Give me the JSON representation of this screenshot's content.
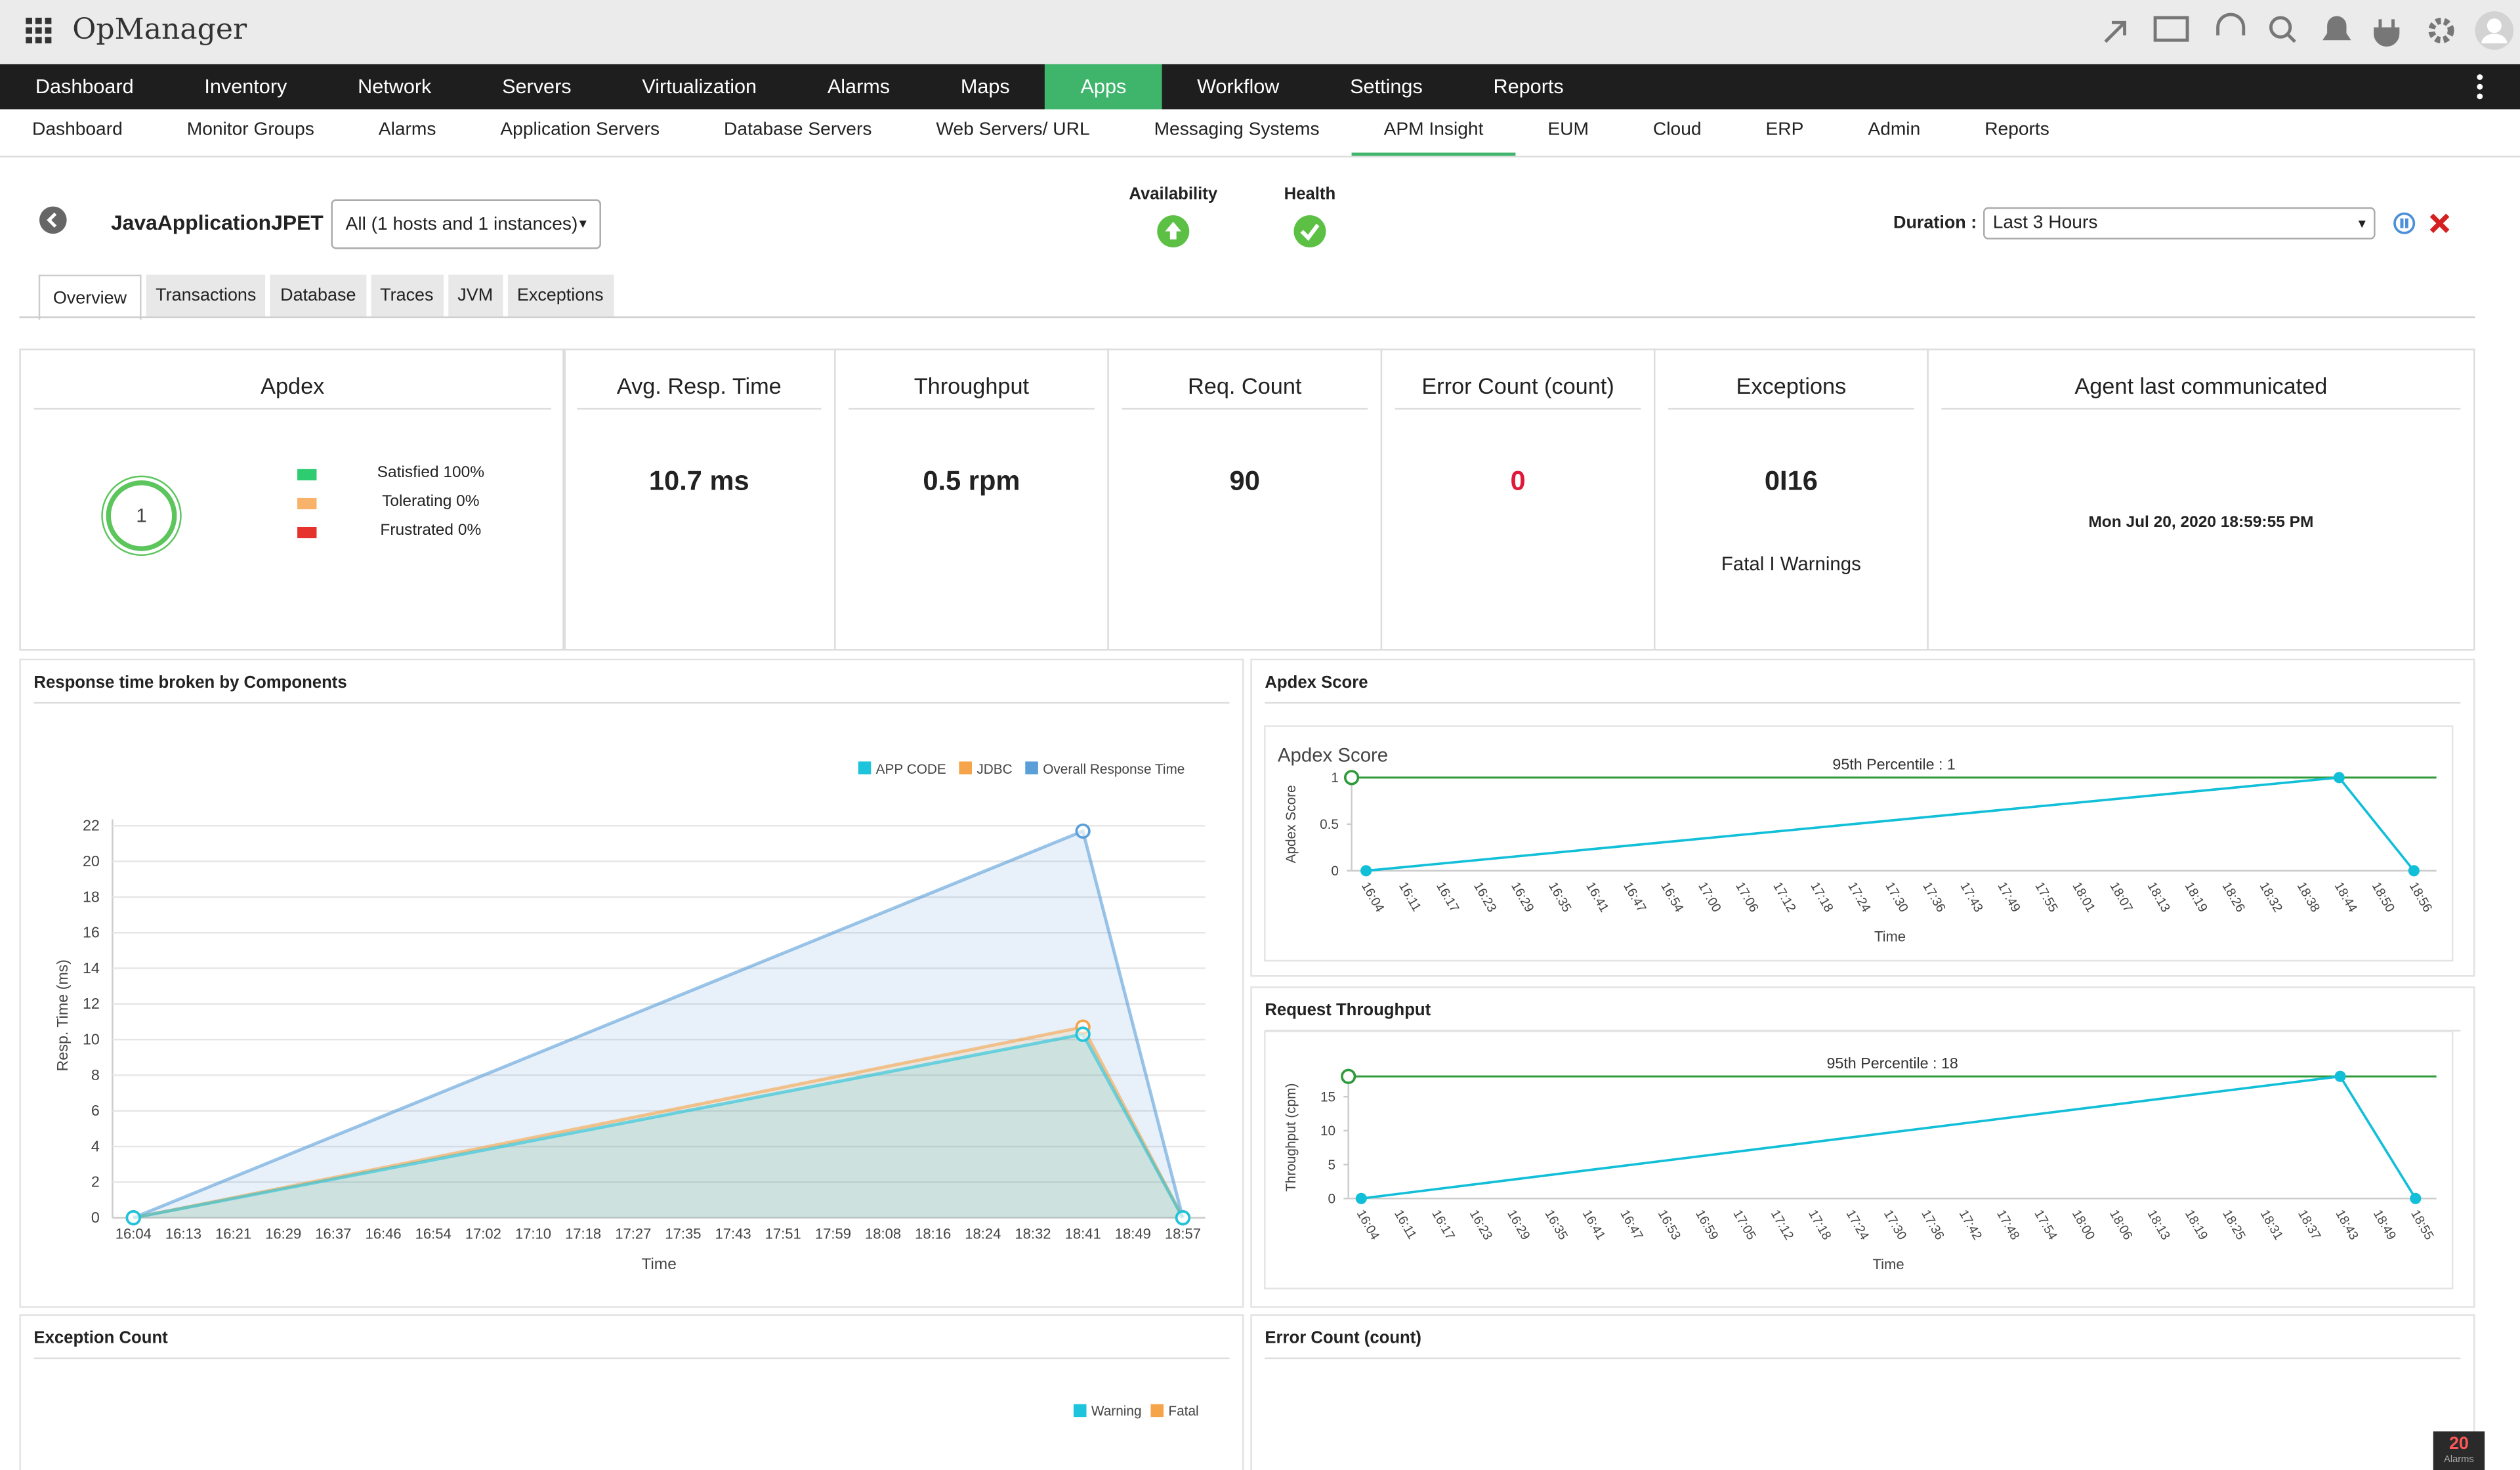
{
  "header": {
    "app_name": "OpManager"
  },
  "main_nav": {
    "items": [
      {
        "label": "Dashboard"
      },
      {
        "label": "Inventory"
      },
      {
        "label": "Network"
      },
      {
        "label": "Servers"
      },
      {
        "label": "Virtualization"
      },
      {
        "label": "Alarms"
      },
      {
        "label": "Maps"
      },
      {
        "label": "Apps",
        "active": true
      },
      {
        "label": "Workflow"
      },
      {
        "label": "Settings"
      },
      {
        "label": "Reports"
      }
    ]
  },
  "sub_nav": {
    "items": [
      {
        "label": "Dashboard"
      },
      {
        "label": "Monitor Groups"
      },
      {
        "label": "Alarms"
      },
      {
        "label": "Application Servers"
      },
      {
        "label": "Database Servers"
      },
      {
        "label": "Web Servers/ URL"
      },
      {
        "label": "Messaging Systems"
      },
      {
        "label": "APM Insight",
        "active": true
      },
      {
        "label": "EUM"
      },
      {
        "label": "Cloud"
      },
      {
        "label": "ERP"
      },
      {
        "label": "Admin"
      },
      {
        "label": "Reports"
      }
    ]
  },
  "monitor": {
    "name": "JavaApplicationJPET",
    "instance_select": "All (1 hosts and 1 instances)",
    "availability_label": "Availability",
    "health_label": "Health",
    "duration_label": "Duration :",
    "duration_value": "Last 3 Hours"
  },
  "tabs": {
    "items": [
      {
        "label": "Overview",
        "active": true
      },
      {
        "label": "Transactions"
      },
      {
        "label": "Database"
      },
      {
        "label": "Traces"
      },
      {
        "label": "JVM"
      },
      {
        "label": "Exceptions"
      }
    ]
  },
  "summary": {
    "apdex": {
      "title": "Apdex",
      "score": 1,
      "legend": [
        {
          "label": "Satisfied 100%",
          "color": "#2ecc71"
        },
        {
          "label": "Tolerating 0%",
          "color": "#f8b26a"
        },
        {
          "label": "Frustrated 0%",
          "color": "#e5322d"
        }
      ]
    },
    "cards": [
      {
        "title": "Avg. Resp. Time",
        "value": "10.7 ms"
      },
      {
        "title": "Throughput",
        "value": "0.5 rpm"
      },
      {
        "title": "Req. Count",
        "value": "90"
      },
      {
        "title": "Error Count (count)",
        "value": "0",
        "color": "#e0193a"
      },
      {
        "title": "Exceptions",
        "value": "0I16",
        "note": "Fatal I Warnings"
      },
      {
        "title": "Agent last communicated",
        "value": "Mon Jul 20, 2020 18:59:55 PM"
      }
    ]
  },
  "panels": {
    "response_time": {
      "title": "Response time broken by Components",
      "chart": {
        "type": "area",
        "x_label": "Time",
        "y_label": "Resp. Time (ms)",
        "categories": [
          "16:04",
          "16:13",
          "16:21",
          "16:29",
          "16:37",
          "16:46",
          "16:54",
          "17:02",
          "17:10",
          "17:18",
          "17:27",
          "17:35",
          "17:43",
          "17:51",
          "17:59",
          "18:08",
          "18:16",
          "18:24",
          "18:32",
          "18:41",
          "18:49",
          "18:57"
        ],
        "x": [
          "16:04",
          "18:41",
          "18:57"
        ],
        "ylim": [
          0,
          22
        ],
        "yticks": [
          0,
          2,
          4,
          6,
          8,
          10,
          12,
          14,
          16,
          18,
          20,
          22
        ],
        "grid": true,
        "series": [
          {
            "name": "APP CODE",
            "color": "#1ec3dc",
            "values": [
              0,
              10.3,
              0
            ]
          },
          {
            "name": "JDBC",
            "color": "#f5a44a",
            "values": [
              0,
              10.7,
              0
            ]
          },
          {
            "name": "Overall Response Time",
            "color": "#5a9fd8",
            "values": [
              0,
              21.7,
              0
            ]
          }
        ]
      }
    },
    "apdex_score": {
      "title": "Apdex Score",
      "chart": {
        "type": "line",
        "title": "Apdex Score",
        "x_label": "Time",
        "y_label": "Apdex Score",
        "categories": [
          "16:04",
          "16:11",
          "16:17",
          "16:23",
          "16:29",
          "16:35",
          "16:41",
          "16:47",
          "16:54",
          "17:00",
          "17:06",
          "17:12",
          "17:18",
          "17:24",
          "17:30",
          "17:36",
          "17:43",
          "17:49",
          "17:55",
          "18:01",
          "18:07",
          "18:13",
          "18:19",
          "18:26",
          "18:32",
          "18:38",
          "18:44",
          "18:50",
          "18:56"
        ],
        "x": [
          "16:04",
          "18:44",
          "18:56"
        ],
        "ylim": [
          0,
          1
        ],
        "yticks": [
          0,
          0.5,
          1
        ],
        "grid": false,
        "series": [
          {
            "color": "#12bfd8",
            "values": [
              0,
              1,
              0
            ]
          }
        ],
        "threshold": {
          "label": "95th Percentile : 1",
          "value": 1,
          "color": "#2e9a3a"
        }
      }
    },
    "request_throughput": {
      "title": "Request Throughput",
      "chart": {
        "type": "line",
        "x_label": "Time",
        "y_label": "Throughput (cpm)",
        "categories": [
          "16:04",
          "16:11",
          "16:17",
          "16:23",
          "16:29",
          "16:35",
          "16:41",
          "16:47",
          "16:53",
          "16:59",
          "17:05",
          "17:12",
          "17:18",
          "17:24",
          "17:30",
          "17:36",
          "17:42",
          "17:48",
          "17:54",
          "18:00",
          "18:06",
          "18:13",
          "18:19",
          "18:25",
          "18:31",
          "18:37",
          "18:43",
          "18:49",
          "18:55"
        ],
        "x": [
          "16:04",
          "18:43",
          "18:55"
        ],
        "ylim": [
          0,
          18
        ],
        "yticks": [
          0,
          5,
          10,
          15
        ],
        "grid": false,
        "series": [
          {
            "color": "#12bfd8",
            "values": [
              0,
              18,
              0
            ]
          }
        ],
        "threshold": {
          "label": "95th Percentile : 18",
          "value": 18,
          "color": "#2e9a3a"
        }
      }
    },
    "exception_count": {
      "title": "Exception Count",
      "legend": [
        {
          "name": "Warning",
          "color": "#1ec3dc"
        },
        {
          "name": "Fatal",
          "color": "#f5a44a"
        }
      ]
    },
    "error_count": {
      "title": "Error Count (count)"
    }
  },
  "alarm_badge": {
    "count": "20",
    "label": "Alarms"
  }
}
